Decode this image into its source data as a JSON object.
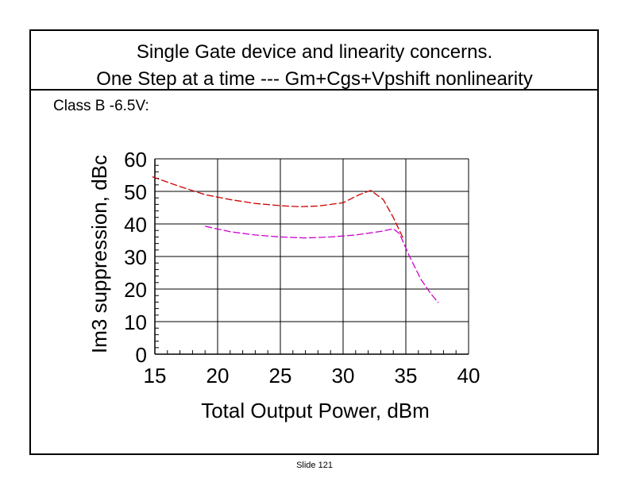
{
  "slide": {
    "title_line1": "Single Gate device and linearity concerns.",
    "title_line2": "One Step at a time --- Gm+Cgs+Vpshift nonlinearity",
    "subtitle": "Class B -6.5V:",
    "footer": "Slide 121"
  },
  "chart_data": {
    "type": "line",
    "xlabel": "Total Output Power, dBm",
    "ylabel": "Im3 suppression, dBc",
    "xlim": [
      15,
      40
    ],
    "ylim": [
      0,
      60
    ],
    "x_ticks": [
      15,
      20,
      25,
      30,
      35,
      40
    ],
    "y_ticks": [
      0,
      10,
      20,
      30,
      40,
      50,
      60
    ],
    "grid": true,
    "series": [
      {
        "color": "#cc0000",
        "style": "dashed",
        "points": [
          [
            14.8,
            54.5
          ],
          [
            17,
            51.5
          ],
          [
            19,
            49
          ],
          [
            21,
            47.5
          ],
          [
            23,
            46.3
          ],
          [
            25,
            45.6
          ],
          [
            26.5,
            45.3
          ],
          [
            28,
            45.5
          ],
          [
            30,
            46.5
          ],
          [
            31.3,
            49
          ],
          [
            32.2,
            50.3
          ],
          [
            33.2,
            47.5
          ],
          [
            34,
            42
          ],
          [
            34.8,
            35.5
          ]
        ]
      },
      {
        "color": "#cc00cc",
        "style": "dashed",
        "points": [
          [
            19,
            39.3
          ],
          [
            21,
            37.6
          ],
          [
            23,
            36.6
          ],
          [
            25,
            36
          ],
          [
            27,
            35.7
          ],
          [
            29,
            36
          ],
          [
            31,
            36.6
          ],
          [
            33,
            37.7
          ],
          [
            34,
            38.5
          ],
          [
            34.5,
            37
          ],
          [
            35.3,
            30
          ],
          [
            36.2,
            23
          ],
          [
            37,
            18.5
          ],
          [
            37.6,
            15.8
          ]
        ]
      }
    ]
  }
}
